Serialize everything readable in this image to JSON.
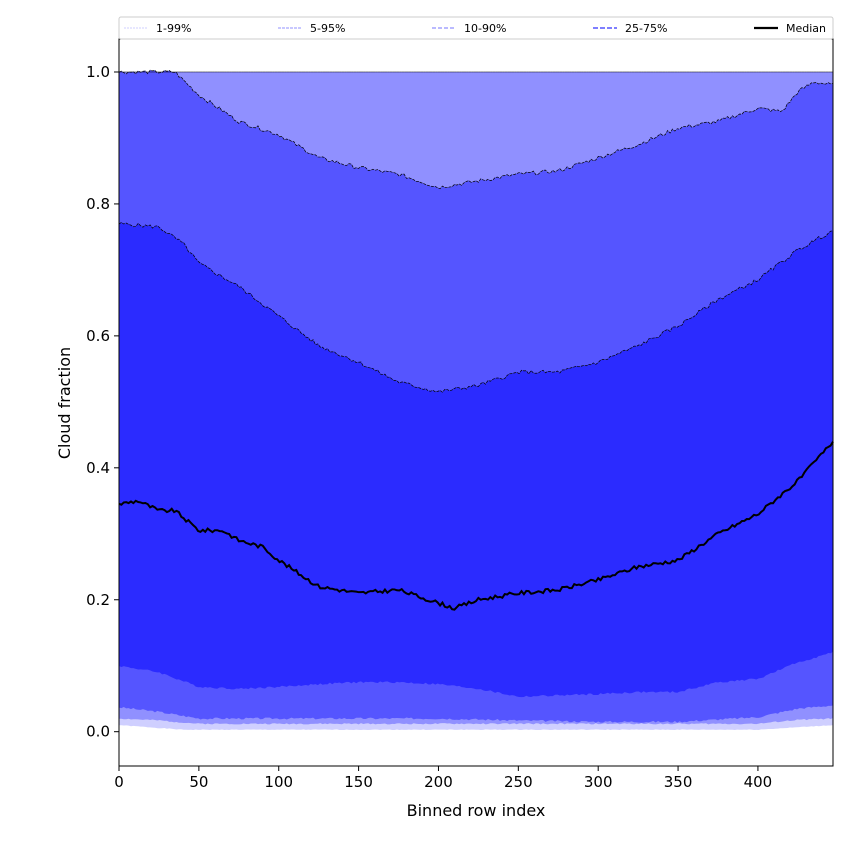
{
  "chart_data": {
    "type": "area",
    "title": "",
    "xlabel": "Binned row index",
    "ylabel": "Cloud fraction",
    "xlim": [
      0,
      447
    ],
    "ylim": [
      -0.052,
      1.05
    ],
    "xticks": [
      0,
      50,
      100,
      150,
      200,
      250,
      300,
      350,
      400
    ],
    "yticks": [
      0.0,
      0.2,
      0.4,
      0.6,
      0.8,
      1.0
    ],
    "ytick_labels": [
      "0.0",
      "0.2",
      "0.4",
      "0.6",
      "0.8",
      "1.0"
    ],
    "legend_placement": "top (above plot, 5 columns)",
    "legend": [
      {
        "label": "1-99%",
        "color": "#cfcfff"
      },
      {
        "label": "5-95%",
        "color": "#9090ff"
      },
      {
        "label": "10-90%",
        "color": "#5555ff"
      },
      {
        "label": "25-75%",
        "color": "#2b2bff"
      },
      {
        "label": "Median",
        "color": "#000000"
      }
    ],
    "percentiles": {
      "p1": [
        [
          0,
          0.01
        ],
        [
          40,
          0.003
        ],
        [
          200,
          0.003
        ],
        [
          400,
          0.003
        ],
        [
          447,
          0.01
        ]
      ],
      "p5": [
        [
          0,
          0.02
        ],
        [
          25,
          0.017
        ],
        [
          50,
          0.012
        ],
        [
          400,
          0.012
        ],
        [
          425,
          0.018
        ],
        [
          447,
          0.02
        ]
      ],
      "p10": [
        [
          0,
          0.037
        ],
        [
          25,
          0.03
        ],
        [
          50,
          0.02
        ],
        [
          100,
          0.02
        ],
        [
          150,
          0.02
        ],
        [
          200,
          0.02
        ],
        [
          250,
          0.017
        ],
        [
          300,
          0.015
        ],
        [
          350,
          0.015
        ],
        [
          400,
          0.022
        ],
        [
          425,
          0.035
        ],
        [
          447,
          0.04
        ]
      ],
      "p25": [
        [
          0,
          0.1
        ],
        [
          25,
          0.09
        ],
        [
          50,
          0.068
        ],
        [
          75,
          0.065
        ],
        [
          100,
          0.068
        ],
        [
          125,
          0.072
        ],
        [
          150,
          0.075
        ],
        [
          175,
          0.075
        ],
        [
          200,
          0.072
        ],
        [
          225,
          0.065
        ],
        [
          250,
          0.053
        ],
        [
          275,
          0.055
        ],
        [
          300,
          0.057
        ],
        [
          325,
          0.06
        ],
        [
          350,
          0.06
        ],
        [
          375,
          0.075
        ],
        [
          400,
          0.08
        ],
        [
          425,
          0.105
        ],
        [
          447,
          0.12
        ]
      ],
      "p75": [
        [
          0,
          0.77
        ],
        [
          25,
          0.765
        ],
        [
          40,
          0.74
        ],
        [
          50,
          0.71
        ],
        [
          75,
          0.675
        ],
        [
          100,
          0.63
        ],
        [
          125,
          0.585
        ],
        [
          150,
          0.56
        ],
        [
          175,
          0.53
        ],
        [
          200,
          0.515
        ],
        [
          225,
          0.525
        ],
        [
          250,
          0.545
        ],
        [
          275,
          0.545
        ],
        [
          300,
          0.56
        ],
        [
          325,
          0.585
        ],
        [
          350,
          0.615
        ],
        [
          375,
          0.655
        ],
        [
          400,
          0.685
        ],
        [
          425,
          0.73
        ],
        [
          447,
          0.76
        ]
      ],
      "p90": [
        [
          0,
          1.0
        ],
        [
          35,
          1.0
        ],
        [
          50,
          0.965
        ],
        [
          75,
          0.925
        ],
        [
          100,
          0.905
        ],
        [
          125,
          0.87
        ],
        [
          150,
          0.855
        ],
        [
          175,
          0.845
        ],
        [
          200,
          0.825
        ],
        [
          225,
          0.835
        ],
        [
          250,
          0.845
        ],
        [
          275,
          0.85
        ],
        [
          300,
          0.87
        ],
        [
          325,
          0.89
        ],
        [
          350,
          0.915
        ],
        [
          375,
          0.925
        ],
        [
          400,
          0.945
        ],
        [
          415,
          0.94
        ],
        [
          425,
          0.97
        ],
        [
          435,
          0.985
        ],
        [
          447,
          0.98
        ]
      ],
      "p95": [
        [
          0,
          1.0
        ],
        [
          447,
          1.0
        ]
      ],
      "p99": [
        [
          0,
          1.0
        ],
        [
          447,
          1.0
        ]
      ]
    },
    "median": [
      [
        0,
        0.345
      ],
      [
        12,
        0.35
      ],
      [
        25,
        0.335
      ],
      [
        35,
        0.335
      ],
      [
        50,
        0.305
      ],
      [
        65,
        0.305
      ],
      [
        75,
        0.29
      ],
      [
        90,
        0.28
      ],
      [
        100,
        0.26
      ],
      [
        125,
        0.22
      ],
      [
        150,
        0.21
      ],
      [
        175,
        0.215
      ],
      [
        200,
        0.195
      ],
      [
        210,
        0.187
      ],
      [
        225,
        0.2
      ],
      [
        250,
        0.21
      ],
      [
        275,
        0.215
      ],
      [
        300,
        0.23
      ],
      [
        325,
        0.25
      ],
      [
        350,
        0.26
      ],
      [
        375,
        0.3
      ],
      [
        400,
        0.33
      ],
      [
        425,
        0.38
      ],
      [
        447,
        0.44
      ]
    ]
  }
}
